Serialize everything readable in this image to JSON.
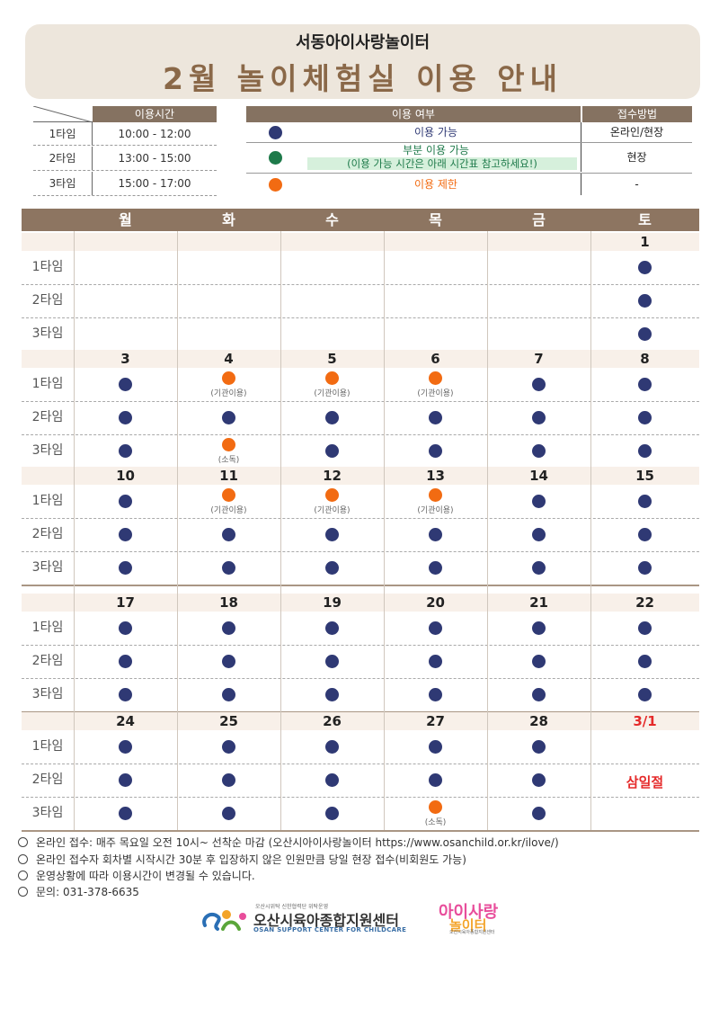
{
  "header": {
    "subtitle": "서동아이사랑놀이터",
    "title": "2월 놀이체험실 이용 안내"
  },
  "time_table": {
    "header": "이용시간",
    "rows": [
      {
        "label": "1타임",
        "time": "10:00 - 12:00"
      },
      {
        "label": "2타임",
        "time": "13:00 - 15:00"
      },
      {
        "label": "3타임",
        "time": "15:00 - 17:00"
      }
    ]
  },
  "legend": {
    "header_status": "이용 여부",
    "header_method": "접수방법",
    "rows": [
      {
        "color": "#2f3974",
        "text": "이용 가능",
        "text2": "",
        "method": "온라인/현장"
      },
      {
        "color": "#1e7a4a",
        "text": "부분 이용 가능",
        "text2": "(이용 가능 시간은 아래 시간표 참고하세요!)",
        "method": "현장"
      },
      {
        "color": "#f26b12",
        "text": "이용 제한",
        "text2": "",
        "method": "-"
      }
    ]
  },
  "calendar": {
    "days": [
      "월",
      "화",
      "수",
      "목",
      "금",
      "토"
    ],
    "time_labels": [
      "1타임",
      "2타임",
      "3타임"
    ],
    "weeks": [
      {
        "dates": [
          "",
          "",
          "",
          "",
          "",
          "1"
        ],
        "slots": [
          [
            "",
            "",
            "",
            "",
            "",
            "A"
          ],
          [
            "",
            "",
            "",
            "",
            "",
            "A"
          ],
          [
            "",
            "",
            "",
            "",
            "",
            "A"
          ]
        ]
      },
      {
        "dates": [
          "3",
          "4",
          "5",
          "6",
          "7",
          "8"
        ],
        "slots": [
          [
            "A",
            "R:(기관이용)",
            "R:(기관이용)",
            "R:(기관이용)",
            "A",
            "A"
          ],
          [
            "A",
            "A",
            "A",
            "A",
            "A",
            "A"
          ],
          [
            "A",
            "R:(소독)",
            "A",
            "A",
            "A",
            "A"
          ]
        ]
      },
      {
        "dates": [
          "10",
          "11",
          "12",
          "13",
          "14",
          "15"
        ],
        "slots": [
          [
            "A",
            "R:(기관이용)",
            "R:(기관이용)",
            "R:(기관이용)",
            "A",
            "A"
          ],
          [
            "A",
            "A",
            "A",
            "A",
            "A",
            "A"
          ],
          [
            "A",
            "A",
            "A",
            "A",
            "A",
            "A"
          ]
        ]
      },
      {
        "dates": [
          "17",
          "18",
          "19",
          "20",
          "21",
          "22"
        ],
        "slots": [
          [
            "A",
            "A",
            "A",
            "A",
            "A",
            "A"
          ],
          [
            "A",
            "A",
            "A",
            "A",
            "A",
            "A"
          ],
          [
            "A",
            "A",
            "A",
            "A",
            "A",
            "A"
          ]
        ]
      },
      {
        "dates": [
          "24",
          "25",
          "26",
          "27",
          "28",
          "3/1"
        ],
        "red_dates": [
          5
        ],
        "holiday": {
          "col": 5,
          "text": "삼일절"
        },
        "slots": [
          [
            "A",
            "A",
            "A",
            "A",
            "A",
            ""
          ],
          [
            "A",
            "A",
            "A",
            "A",
            "A",
            ""
          ],
          [
            "A",
            "A",
            "A",
            "R:(소독)",
            "A",
            ""
          ]
        ]
      }
    ],
    "colors": {
      "available": "#2f3974",
      "restricted": "#f26b12"
    }
  },
  "notes": [
    "온라인 접수: 매주 목요일 오전 10시~ 선착순 마감 (오산시아이사랑놀이터 https://www.osanchild.or.kr/ilove/)",
    "온라인 접수자 회차별 시작시간 30분 후 입장하지 않은 인원만큼 당일 현장 접수(비회원도 가능)",
    "운영상황에 따라 이용시간이 변경될 수 있습니다.",
    "문의: 031-378-6635"
  ],
  "footer": {
    "center_tiny": "오산시위탁 신한협력단 위탁운영",
    "center_name": "오산시육아종합지원센터",
    "center_eng": "OSAN SUPPORT CENTER FOR CHILDCARE",
    "play_line1": "아이사랑",
    "play_line2": "놀이터",
    "play_small": "오산시육아종합지원센터"
  }
}
